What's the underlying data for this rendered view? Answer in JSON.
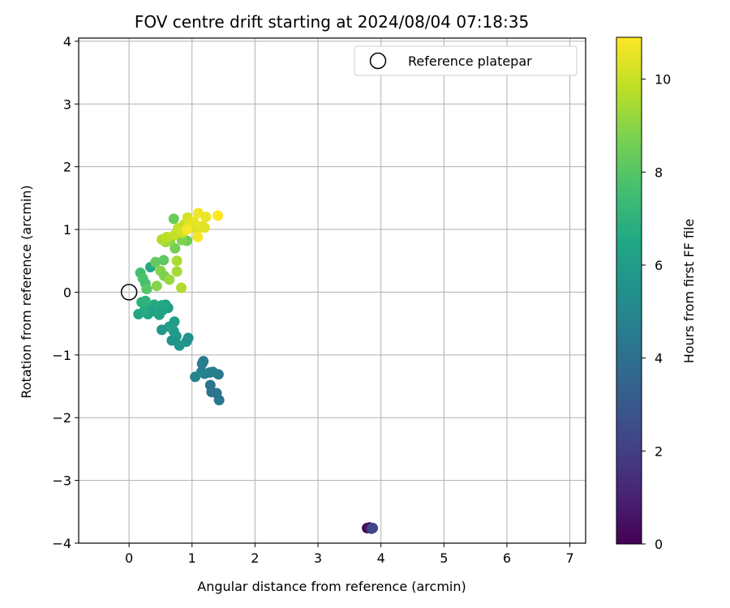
{
  "chart_data": {
    "type": "scatter",
    "title": "FOV centre drift starting at 2024/08/04 07:18:35",
    "xlabel": "Angular distance from reference (arcmin)",
    "ylabel": "Rotation from reference (arcmin)",
    "xlim": [
      -0.8,
      7.25
    ],
    "ylim": [
      -4.0,
      4.05
    ],
    "xticks": [
      0,
      1,
      2,
      3,
      4,
      5,
      6,
      7
    ],
    "yticks": [
      -4,
      -3,
      -2,
      -1,
      0,
      1,
      2,
      3,
      4
    ],
    "grid": true,
    "legend": {
      "position": "top-right",
      "entries": [
        "Reference platepar"
      ]
    },
    "reference_point": {
      "x": 0,
      "y": 0,
      "label": "Reference platepar"
    },
    "colorbar": {
      "label": "Hours from first FF file",
      "colormap": "viridis",
      "range": [
        0,
        10.9
      ],
      "ticks": [
        0,
        2,
        4,
        6,
        8,
        10
      ]
    },
    "series": [
      {
        "points": [
          {
            "x": 3.78,
            "y": -3.76,
            "c": 0.1
          },
          {
            "x": 3.82,
            "y": -3.75,
            "c": 0.6
          },
          {
            "x": 3.85,
            "y": -3.77,
            "c": 1.8
          },
          {
            "x": 3.87,
            "y": -3.76,
            "c": 2.3
          },
          {
            "x": 1.43,
            "y": -1.72,
            "c": 4.3
          },
          {
            "x": 1.39,
            "y": -1.61,
            "c": 4.3
          },
          {
            "x": 1.31,
            "y": -1.59,
            "c": 4.2
          },
          {
            "x": 1.29,
            "y": -1.48,
            "c": 4.1
          },
          {
            "x": 1.42,
            "y": -1.31,
            "c": 4.4
          },
          {
            "x": 1.33,
            "y": -1.27,
            "c": 4.6
          },
          {
            "x": 1.28,
            "y": -1.28,
            "c": 4.7
          },
          {
            "x": 1.2,
            "y": -1.3,
            "c": 4.5
          },
          {
            "x": 1.15,
            "y": -1.27,
            "c": 4.8
          },
          {
            "x": 1.18,
            "y": -1.1,
            "c": 4.4
          },
          {
            "x": 1.16,
            "y": -1.14,
            "c": 4.5
          },
          {
            "x": 1.05,
            "y": -1.35,
            "c": 4.9
          },
          {
            "x": 0.94,
            "y": -0.73,
            "c": 5.5
          },
          {
            "x": 0.91,
            "y": -0.79,
            "c": 5.6
          },
          {
            "x": 0.8,
            "y": -0.85,
            "c": 5.7
          },
          {
            "x": 0.75,
            "y": -0.7,
            "c": 5.9
          },
          {
            "x": 0.68,
            "y": -0.77,
            "c": 5.6
          },
          {
            "x": 0.71,
            "y": -0.62,
            "c": 5.9
          },
          {
            "x": 0.72,
            "y": -0.47,
            "c": 6.0
          },
          {
            "x": 0.64,
            "y": -0.55,
            "c": 6.1
          },
          {
            "x": 0.52,
            "y": -0.6,
            "c": 5.8
          },
          {
            "x": 0.62,
            "y": -0.25,
            "c": 6.0
          },
          {
            "x": 0.58,
            "y": -0.2,
            "c": 6.3
          },
          {
            "x": 0.54,
            "y": -0.28,
            "c": 6.2
          },
          {
            "x": 0.52,
            "y": -0.21,
            "c": 6.5
          },
          {
            "x": 0.45,
            "y": -0.26,
            "c": 6.3
          },
          {
            "x": 0.48,
            "y": -0.36,
            "c": 6.2
          },
          {
            "x": 0.42,
            "y": -0.31,
            "c": 6.4
          },
          {
            "x": 0.4,
            "y": -0.2,
            "c": 6.6
          },
          {
            "x": 0.33,
            "y": -0.28,
            "c": 6.4
          },
          {
            "x": 0.3,
            "y": -0.35,
            "c": 6.3
          },
          {
            "x": 0.24,
            "y": -0.3,
            "c": 6.7
          },
          {
            "x": 0.2,
            "y": -0.16,
            "c": 6.9
          },
          {
            "x": 0.15,
            "y": -0.35,
            "c": 6.5
          },
          {
            "x": 0.26,
            "y": -0.14,
            "c": 7.0
          },
          {
            "x": 0.34,
            "y": 0.4,
            "c": 6.6
          },
          {
            "x": 0.18,
            "y": 0.31,
            "c": 7.6
          },
          {
            "x": 0.22,
            "y": 0.22,
            "c": 7.8
          },
          {
            "x": 0.26,
            "y": 0.14,
            "c": 7.7
          },
          {
            "x": 0.28,
            "y": 0.05,
            "c": 8.0
          },
          {
            "x": 0.44,
            "y": 0.1,
            "c": 8.9
          },
          {
            "x": 0.42,
            "y": 0.48,
            "c": 8.3
          },
          {
            "x": 0.55,
            "y": 0.51,
            "c": 8.2
          },
          {
            "x": 0.5,
            "y": 0.34,
            "c": 8.9
          },
          {
            "x": 0.56,
            "y": 0.26,
            "c": 8.7
          },
          {
            "x": 0.64,
            "y": 0.2,
            "c": 9.2
          },
          {
            "x": 0.76,
            "y": 0.33,
            "c": 9.4
          },
          {
            "x": 0.76,
            "y": 0.5,
            "c": 9.5
          },
          {
            "x": 0.83,
            "y": 0.07,
            "c": 9.6
          },
          {
            "x": 0.73,
            "y": 0.7,
            "c": 8.6
          },
          {
            "x": 0.71,
            "y": 1.17,
            "c": 8.4
          },
          {
            "x": 0.92,
            "y": 0.82,
            "c": 8.5
          },
          {
            "x": 0.84,
            "y": 0.83,
            "c": 8.8
          },
          {
            "x": 0.65,
            "y": 0.82,
            "c": 9.0
          },
          {
            "x": 0.58,
            "y": 0.8,
            "c": 9.3
          },
          {
            "x": 0.52,
            "y": 0.84,
            "c": 9.6
          },
          {
            "x": 0.6,
            "y": 0.88,
            "c": 9.8
          },
          {
            "x": 0.72,
            "y": 0.91,
            "c": 9.9
          },
          {
            "x": 0.78,
            "y": 1.02,
            "c": 10.0
          },
          {
            "x": 0.85,
            "y": 0.95,
            "c": 10.1
          },
          {
            "x": 0.88,
            "y": 1.08,
            "c": 9.9
          },
          {
            "x": 0.93,
            "y": 1.19,
            "c": 10.2
          },
          {
            "x": 0.96,
            "y": 1.1,
            "c": 10.4
          },
          {
            "x": 1.0,
            "y": 1.05,
            "c": 10.6
          },
          {
            "x": 1.03,
            "y": 1.12,
            "c": 10.5
          },
          {
            "x": 1.08,
            "y": 1.0,
            "c": 10.3
          },
          {
            "x": 1.1,
            "y": 1.26,
            "c": 10.7
          },
          {
            "x": 1.15,
            "y": 1.05,
            "c": 10.5
          },
          {
            "x": 1.22,
            "y": 1.2,
            "c": 10.6
          },
          {
            "x": 1.2,
            "y": 1.03,
            "c": 10.4
          },
          {
            "x": 1.09,
            "y": 0.88,
            "c": 10.8
          },
          {
            "x": 1.41,
            "y": 1.22,
            "c": 10.9
          },
          {
            "x": 0.92,
            "y": 1.0,
            "c": 10.8
          }
        ]
      }
    ]
  }
}
